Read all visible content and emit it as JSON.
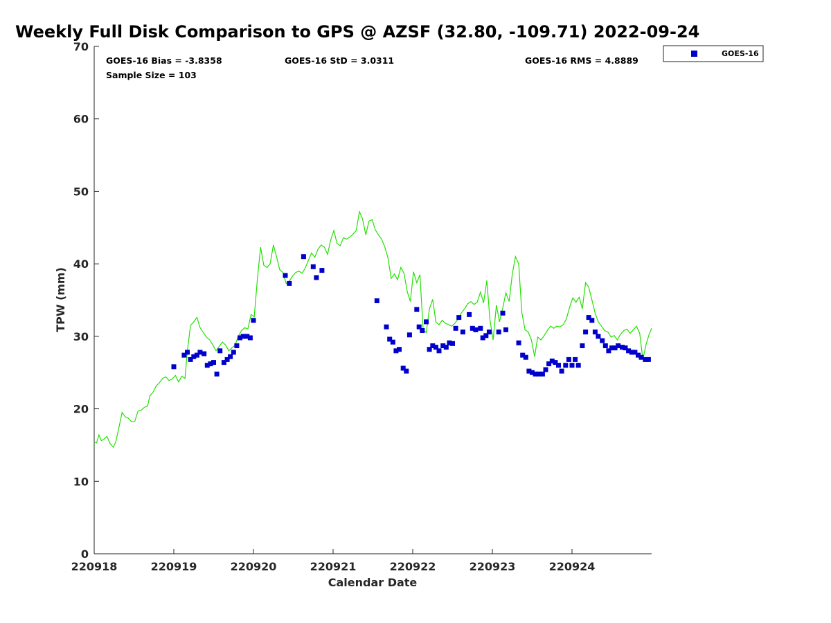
{
  "chart_data": {
    "type": "scatter",
    "title": "Weekly Full Disk Comparison to GPS @ AZSF (32.80, -109.71) 2022-09-24",
    "xlabel": "Calendar Date",
    "ylabel": "TPW (mm)",
    "xlim": [
      0,
      7
    ],
    "ylim": [
      0,
      70
    ],
    "x_tick_labels": [
      "220918",
      "220919",
      "220920",
      "220921",
      "220922",
      "220923",
      "220924"
    ],
    "y_ticks": [
      0,
      10,
      20,
      30,
      40,
      50,
      60,
      70
    ],
    "legend": {
      "position": "top-right-outside",
      "entries": [
        "GOES-16"
      ]
    },
    "stats": {
      "bias": "GOES-16 Bias = -3.8358",
      "std": "GOES-16 StD = 3.0311",
      "rms": "GOES-16 RMS = 4.8889",
      "sample": "Sample Size = 103"
    },
    "colors": {
      "series_marker": "#0000cc",
      "gps_line": "#22e000",
      "axis": "#262626"
    },
    "series": [
      {
        "name": "GOES-16",
        "marker": "square",
        "points": [
          [
            1.0,
            25.8
          ],
          [
            1.13,
            27.4
          ],
          [
            1.17,
            27.8
          ],
          [
            1.21,
            26.8
          ],
          [
            1.25,
            27.2
          ],
          [
            1.29,
            27.4
          ],
          [
            1.33,
            27.8
          ],
          [
            1.38,
            27.6
          ],
          [
            1.42,
            26.0
          ],
          [
            1.46,
            26.2
          ],
          [
            1.5,
            26.4
          ],
          [
            1.54,
            24.8
          ],
          [
            1.58,
            28.0
          ],
          [
            1.63,
            26.4
          ],
          [
            1.67,
            26.8
          ],
          [
            1.71,
            27.2
          ],
          [
            1.75,
            27.8
          ],
          [
            1.79,
            28.7
          ],
          [
            1.83,
            29.8
          ],
          [
            1.87,
            30.0
          ],
          [
            1.92,
            30.0
          ],
          [
            1.96,
            29.8
          ],
          [
            2.0,
            32.2
          ],
          [
            2.4,
            38.4
          ],
          [
            2.45,
            37.3
          ],
          [
            2.63,
            41.0
          ],
          [
            2.75,
            39.6
          ],
          [
            2.79,
            38.1
          ],
          [
            2.86,
            39.1
          ],
          [
            3.55,
            34.9
          ],
          [
            3.67,
            31.3
          ],
          [
            3.71,
            29.6
          ],
          [
            3.75,
            29.2
          ],
          [
            3.79,
            28.0
          ],
          [
            3.83,
            28.2
          ],
          [
            3.88,
            25.6
          ],
          [
            3.92,
            25.2
          ],
          [
            3.96,
            30.2
          ],
          [
            4.05,
            33.7
          ],
          [
            4.08,
            31.3
          ],
          [
            4.12,
            30.8
          ],
          [
            4.17,
            32.0
          ],
          [
            4.21,
            28.2
          ],
          [
            4.25,
            28.7
          ],
          [
            4.29,
            28.5
          ],
          [
            4.33,
            28.0
          ],
          [
            4.38,
            28.7
          ],
          [
            4.42,
            28.5
          ],
          [
            4.46,
            29.1
          ],
          [
            4.5,
            29.0
          ],
          [
            4.54,
            31.1
          ],
          [
            4.58,
            32.6
          ],
          [
            4.63,
            30.6
          ],
          [
            4.71,
            33.0
          ],
          [
            4.75,
            31.1
          ],
          [
            4.79,
            30.9
          ],
          [
            4.85,
            31.1
          ],
          [
            4.88,
            29.8
          ],
          [
            4.92,
            30.1
          ],
          [
            4.96,
            30.6
          ],
          [
            5.08,
            30.6
          ],
          [
            5.13,
            33.2
          ],
          [
            5.17,
            30.9
          ],
          [
            5.33,
            29.1
          ],
          [
            5.38,
            27.4
          ],
          [
            5.42,
            27.1
          ],
          [
            5.46,
            25.2
          ],
          [
            5.5,
            25.0
          ],
          [
            5.54,
            24.8
          ],
          [
            5.58,
            24.8
          ],
          [
            5.63,
            24.8
          ],
          [
            5.67,
            25.4
          ],
          [
            5.71,
            26.2
          ],
          [
            5.75,
            26.6
          ],
          [
            5.79,
            26.4
          ],
          [
            5.83,
            26.0
          ],
          [
            5.87,
            25.2
          ],
          [
            5.92,
            26.0
          ],
          [
            5.96,
            26.8
          ],
          [
            6.0,
            26.0
          ],
          [
            6.04,
            26.8
          ],
          [
            6.08,
            26.0
          ],
          [
            6.13,
            28.7
          ],
          [
            6.17,
            30.6
          ],
          [
            6.21,
            32.6
          ],
          [
            6.25,
            32.2
          ],
          [
            6.29,
            30.6
          ],
          [
            6.33,
            30.0
          ],
          [
            6.38,
            29.4
          ],
          [
            6.42,
            28.7
          ],
          [
            6.46,
            28.0
          ],
          [
            6.5,
            28.4
          ],
          [
            6.54,
            28.4
          ],
          [
            6.58,
            28.7
          ],
          [
            6.63,
            28.5
          ],
          [
            6.67,
            28.4
          ],
          [
            6.71,
            28.0
          ],
          [
            6.75,
            27.8
          ],
          [
            6.79,
            27.8
          ],
          [
            6.83,
            27.4
          ],
          [
            6.87,
            27.1
          ],
          [
            6.92,
            26.8
          ],
          [
            6.96,
            26.8
          ]
        ]
      }
    ],
    "reference_line": {
      "color": "#22e000",
      "points": [
        [
          0.0,
          15.4
        ],
        [
          0.03,
          15.3
        ],
        [
          0.06,
          16.4
        ],
        [
          0.09,
          15.6
        ],
        [
          0.12,
          15.8
        ],
        [
          0.16,
          16.2
        ],
        [
          0.2,
          15.2
        ],
        [
          0.24,
          14.7
        ],
        [
          0.27,
          15.4
        ],
        [
          0.31,
          17.4
        ],
        [
          0.35,
          19.5
        ],
        [
          0.39,
          18.9
        ],
        [
          0.43,
          18.7
        ],
        [
          0.47,
          18.2
        ],
        [
          0.51,
          18.3
        ],
        [
          0.55,
          19.7
        ],
        [
          0.59,
          19.8
        ],
        [
          0.63,
          20.2
        ],
        [
          0.67,
          20.4
        ],
        [
          0.7,
          21.8
        ],
        [
          0.74,
          22.3
        ],
        [
          0.78,
          23.2
        ],
        [
          0.82,
          23.6
        ],
        [
          0.86,
          24.2
        ],
        [
          0.9,
          24.4
        ],
        [
          0.94,
          23.9
        ],
        [
          0.98,
          24.1
        ],
        [
          1.02,
          24.6
        ],
        [
          1.06,
          23.7
        ],
        [
          1.1,
          24.5
        ],
        [
          1.14,
          24.2
        ],
        [
          1.17,
          27.9
        ],
        [
          1.21,
          31.5
        ],
        [
          1.25,
          32.0
        ],
        [
          1.29,
          32.6
        ],
        [
          1.33,
          31.2
        ],
        [
          1.37,
          30.5
        ],
        [
          1.41,
          29.9
        ],
        [
          1.45,
          29.5
        ],
        [
          1.49,
          28.8
        ],
        [
          1.53,
          28.0
        ],
        [
          1.57,
          28.6
        ],
        [
          1.61,
          29.2
        ],
        [
          1.65,
          28.8
        ],
        [
          1.69,
          28.0
        ],
        [
          1.73,
          28.4
        ],
        [
          1.77,
          28.8
        ],
        [
          1.81,
          30.0
        ],
        [
          1.85,
          30.8
        ],
        [
          1.89,
          31.2
        ],
        [
          1.93,
          31.0
        ],
        [
          1.97,
          33.0
        ],
        [
          2.01,
          32.7
        ],
        [
          2.05,
          38.0
        ],
        [
          2.09,
          42.3
        ],
        [
          2.13,
          39.8
        ],
        [
          2.17,
          39.5
        ],
        [
          2.21,
          40.0
        ],
        [
          2.25,
          42.6
        ],
        [
          2.29,
          41.0
        ],
        [
          2.33,
          39.2
        ],
        [
          2.37,
          38.8
        ],
        [
          2.41,
          37.3
        ],
        [
          2.45,
          37.6
        ],
        [
          2.49,
          38.3
        ],
        [
          2.53,
          38.8
        ],
        [
          2.57,
          39.0
        ],
        [
          2.61,
          38.7
        ],
        [
          2.65,
          39.4
        ],
        [
          2.69,
          40.5
        ],
        [
          2.73,
          41.5
        ],
        [
          2.77,
          40.9
        ],
        [
          2.81,
          42.0
        ],
        [
          2.85,
          42.6
        ],
        [
          2.89,
          42.3
        ],
        [
          2.93,
          41.3
        ],
        [
          2.97,
          43.3
        ],
        [
          3.01,
          44.6
        ],
        [
          3.05,
          42.8
        ],
        [
          3.09,
          42.5
        ],
        [
          3.13,
          43.6
        ],
        [
          3.17,
          43.4
        ],
        [
          3.21,
          43.7
        ],
        [
          3.25,
          44.1
        ],
        [
          3.29,
          44.6
        ],
        [
          3.33,
          47.2
        ],
        [
          3.37,
          46.2
        ],
        [
          3.41,
          44.0
        ],
        [
          3.45,
          45.9
        ],
        [
          3.49,
          46.1
        ],
        [
          3.53,
          44.7
        ],
        [
          3.57,
          44.0
        ],
        [
          3.61,
          43.4
        ],
        [
          3.65,
          42.3
        ],
        [
          3.69,
          40.8
        ],
        [
          3.73,
          38.0
        ],
        [
          3.77,
          38.6
        ],
        [
          3.81,
          37.8
        ],
        [
          3.85,
          39.5
        ],
        [
          3.89,
          38.7
        ],
        [
          3.93,
          36.2
        ],
        [
          3.97,
          34.8
        ],
        [
          4.01,
          38.9
        ],
        [
          4.05,
          37.4
        ],
        [
          4.09,
          38.5
        ],
        [
          4.13,
          31.0
        ],
        [
          4.17,
          30.5
        ],
        [
          4.21,
          33.8
        ],
        [
          4.25,
          35.1
        ],
        [
          4.29,
          32.0
        ],
        [
          4.33,
          31.6
        ],
        [
          4.37,
          32.2
        ],
        [
          4.41,
          31.8
        ],
        [
          4.45,
          31.6
        ],
        [
          4.49,
          31.4
        ],
        [
          4.53,
          31.8
        ],
        [
          4.57,
          32.4
        ],
        [
          4.61,
          33.2
        ],
        [
          4.65,
          33.8
        ],
        [
          4.69,
          34.5
        ],
        [
          4.73,
          34.8
        ],
        [
          4.77,
          34.4
        ],
        [
          4.81,
          34.7
        ],
        [
          4.85,
          36.1
        ],
        [
          4.89,
          34.6
        ],
        [
          4.93,
          37.7
        ],
        [
          4.97,
          32.3
        ],
        [
          5.01,
          29.5
        ],
        [
          5.05,
          34.3
        ],
        [
          5.09,
          32.0
        ],
        [
          5.13,
          33.9
        ],
        [
          5.17,
          36.0
        ],
        [
          5.21,
          34.8
        ],
        [
          5.25,
          38.6
        ],
        [
          5.29,
          41.0
        ],
        [
          5.33,
          40.0
        ],
        [
          5.37,
          33.3
        ],
        [
          5.41,
          30.9
        ],
        [
          5.45,
          30.6
        ],
        [
          5.49,
          29.5
        ],
        [
          5.53,
          27.2
        ],
        [
          5.57,
          29.9
        ],
        [
          5.61,
          29.5
        ],
        [
          5.65,
          30.1
        ],
        [
          5.69,
          30.8
        ],
        [
          5.73,
          31.4
        ],
        [
          5.77,
          31.1
        ],
        [
          5.81,
          31.4
        ],
        [
          5.85,
          31.3
        ],
        [
          5.89,
          31.6
        ],
        [
          5.93,
          32.4
        ],
        [
          5.97,
          34.0
        ],
        [
          6.01,
          35.3
        ],
        [
          6.05,
          34.7
        ],
        [
          6.09,
          35.4
        ],
        [
          6.13,
          33.8
        ],
        [
          6.17,
          37.4
        ],
        [
          6.21,
          36.8
        ],
        [
          6.25,
          35.0
        ],
        [
          6.29,
          33.2
        ],
        [
          6.33,
          32.0
        ],
        [
          6.37,
          31.4
        ],
        [
          6.41,
          30.8
        ],
        [
          6.45,
          30.6
        ],
        [
          6.49,
          29.9
        ],
        [
          6.53,
          30.1
        ],
        [
          6.57,
          29.5
        ],
        [
          6.61,
          30.3
        ],
        [
          6.65,
          30.8
        ],
        [
          6.69,
          31.0
        ],
        [
          6.73,
          30.4
        ],
        [
          6.77,
          30.9
        ],
        [
          6.81,
          31.4
        ],
        [
          6.85,
          30.4
        ],
        [
          6.89,
          26.8
        ],
        [
          6.93,
          28.9
        ],
        [
          6.97,
          30.3
        ],
        [
          7.0,
          31.1
        ]
      ]
    }
  }
}
